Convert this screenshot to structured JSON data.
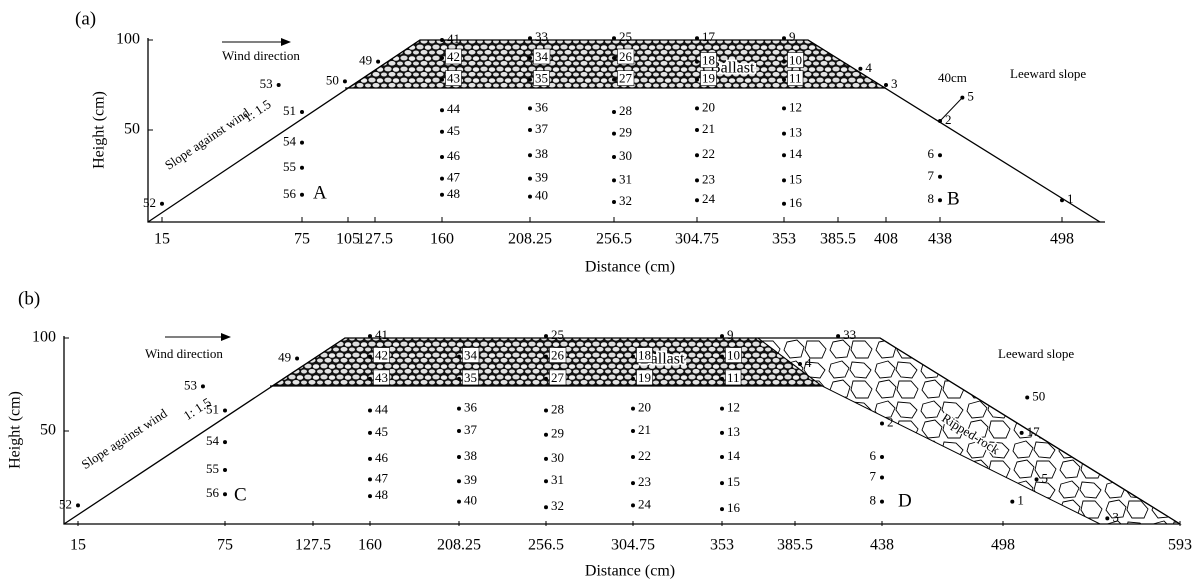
{
  "panels": [
    {
      "label": "(a)",
      "y_label": "Height (cm)",
      "x_label": "Distance (cm)",
      "x_ticks": [
        15,
        75,
        105,
        127.5,
        160,
        208.25,
        256.5,
        304.75,
        353,
        385.5,
        408,
        438,
        498
      ],
      "y_ticks": [
        50,
        100
      ],
      "annotations": {
        "wind": "Wind direction",
        "slope_against": "Slope against wind",
        "ratio": "1: 1.5",
        "leeward": "Leeward slope",
        "ballast": "Ballast",
        "width": "40cm",
        "zone_left": "A",
        "zone_right": "B"
      },
      "points": [
        {
          "label": "1",
          "x": 498,
          "y": 11
        },
        {
          "label": "2",
          "x": 438,
          "y": 55
        },
        {
          "label": "3",
          "x": 408,
          "y": 75
        },
        {
          "label": "4",
          "x": 396,
          "y": 84
        },
        {
          "label": "5",
          "x": 449,
          "y": 68
        },
        {
          "label": "6",
          "x": 438,
          "y": 36
        },
        {
          "label": "7",
          "x": 438,
          "y": 24
        },
        {
          "label": "8",
          "x": 438,
          "y": 11
        },
        {
          "label": "9",
          "x": 353,
          "y": 101
        },
        {
          "label": "10",
          "x": 353,
          "y": 88
        },
        {
          "label": "11",
          "x": 353,
          "y": 78
        },
        {
          "label": "12",
          "x": 353,
          "y": 62
        },
        {
          "label": "13",
          "x": 353,
          "y": 48
        },
        {
          "label": "14",
          "x": 353,
          "y": 36
        },
        {
          "label": "15",
          "x": 353,
          "y": 22
        },
        {
          "label": "16",
          "x": 353,
          "y": 9
        },
        {
          "label": "17",
          "x": 304.75,
          "y": 101
        },
        {
          "label": "18",
          "x": 304.75,
          "y": 88
        },
        {
          "label": "19",
          "x": 304.75,
          "y": 78
        },
        {
          "label": "20",
          "x": 304.75,
          "y": 62
        },
        {
          "label": "21",
          "x": 304.75,
          "y": 50
        },
        {
          "label": "22",
          "x": 304.75,
          "y": 36
        },
        {
          "label": "23",
          "x": 304.75,
          "y": 22
        },
        {
          "label": "24",
          "x": 304.75,
          "y": 11
        },
        {
          "label": "25",
          "x": 256.5,
          "y": 101
        },
        {
          "label": "26",
          "x": 256.5,
          "y": 90
        },
        {
          "label": "27",
          "x": 256.5,
          "y": 78
        },
        {
          "label": "28",
          "x": 256.5,
          "y": 60
        },
        {
          "label": "29",
          "x": 256.5,
          "y": 48
        },
        {
          "label": "30",
          "x": 256.5,
          "y": 35
        },
        {
          "label": "31",
          "x": 256.5,
          "y": 22
        },
        {
          "label": "32",
          "x": 256.5,
          "y": 10
        },
        {
          "label": "33",
          "x": 208.25,
          "y": 101
        },
        {
          "label": "34",
          "x": 208.25,
          "y": 90
        },
        {
          "label": "35",
          "x": 208.25,
          "y": 78
        },
        {
          "label": "36",
          "x": 208.25,
          "y": 62
        },
        {
          "label": "37",
          "x": 208.25,
          "y": 50
        },
        {
          "label": "38",
          "x": 208.25,
          "y": 36
        },
        {
          "label": "39",
          "x": 208.25,
          "y": 23
        },
        {
          "label": "40",
          "x": 208.25,
          "y": 13
        },
        {
          "label": "41",
          "x": 160,
          "y": 100
        },
        {
          "label": "42",
          "x": 160,
          "y": 90
        },
        {
          "label": "43",
          "x": 160,
          "y": 78
        },
        {
          "label": "44",
          "x": 160,
          "y": 61
        },
        {
          "label": "45",
          "x": 160,
          "y": 49
        },
        {
          "label": "46",
          "x": 160,
          "y": 35
        },
        {
          "label": "47",
          "x": 160,
          "y": 23
        },
        {
          "label": "48",
          "x": 160,
          "y": 14
        },
        {
          "label": "49",
          "x": 129,
          "y": 88
        },
        {
          "label": "50",
          "x": 103,
          "y": 77
        },
        {
          "label": "51",
          "x": 75,
          "y": 60
        },
        {
          "label": "52",
          "x": 15,
          "y": 9
        },
        {
          "label": "53",
          "x": 65,
          "y": 75
        },
        {
          "label": "54",
          "x": 75,
          "y": 43
        },
        {
          "label": "55",
          "x": 75,
          "y": 29
        },
        {
          "label": "56",
          "x": 75,
          "y": 14
        }
      ]
    },
    {
      "label": "(b)",
      "y_label": "Height (cm)",
      "x_label": "Distance (cm)",
      "x_ticks": [
        15,
        75,
        127.5,
        160,
        208.25,
        256.5,
        304.75,
        353,
        385.5,
        438,
        498,
        593
      ],
      "y_ticks": [
        50,
        100
      ],
      "annotations": {
        "wind": "Wind direction",
        "slope_against": "Slope against wind",
        "ratio": "1: 1.5",
        "leeward": "Leeward slope",
        "ballast": "Ballast",
        "ripped_rock": "Ripped-rock",
        "zone_left": "C",
        "zone_right": "D"
      },
      "points": [
        {
          "label": "1",
          "x": 503,
          "y": 12
        },
        {
          "label": "2",
          "x": 438,
          "y": 54
        },
        {
          "label": "3",
          "x": 554,
          "y": 3
        },
        {
          "label": "4",
          "x": 388.5,
          "y": 86
        },
        {
          "label": "5",
          "x": 516,
          "y": 24
        },
        {
          "label": "6",
          "x": 438,
          "y": 36
        },
        {
          "label": "7",
          "x": 438,
          "y": 25
        },
        {
          "label": "8",
          "x": 438,
          "y": 12
        },
        {
          "label": "9",
          "x": 353,
          "y": 101
        },
        {
          "label": "10",
          "x": 353,
          "y": 90
        },
        {
          "label": "11",
          "x": 353,
          "y": 78
        },
        {
          "label": "12",
          "x": 353,
          "y": 62
        },
        {
          "label": "13",
          "x": 353,
          "y": 49
        },
        {
          "label": "14",
          "x": 353,
          "y": 36
        },
        {
          "label": "15",
          "x": 353,
          "y": 22
        },
        {
          "label": "16",
          "x": 353,
          "y": 8
        },
        {
          "label": "17",
          "x": 508,
          "y": 49
        },
        {
          "label": "18",
          "x": 304.75,
          "y": 90
        },
        {
          "label": "19",
          "x": 304.75,
          "y": 78
        },
        {
          "label": "20",
          "x": 304.75,
          "y": 62
        },
        {
          "label": "21",
          "x": 304.75,
          "y": 50
        },
        {
          "label": "22",
          "x": 304.75,
          "y": 36
        },
        {
          "label": "23",
          "x": 304.75,
          "y": 22
        },
        {
          "label": "24",
          "x": 304.75,
          "y": 10
        },
        {
          "label": "25",
          "x": 256.5,
          "y": 101
        },
        {
          "label": "26",
          "x": 256.5,
          "y": 90
        },
        {
          "label": "27",
          "x": 256.5,
          "y": 78
        },
        {
          "label": "28",
          "x": 256.5,
          "y": 61
        },
        {
          "label": "29",
          "x": 256.5,
          "y": 48
        },
        {
          "label": "30",
          "x": 256.5,
          "y": 35
        },
        {
          "label": "31",
          "x": 256.5,
          "y": 23
        },
        {
          "label": "32",
          "x": 256.5,
          "y": 9
        },
        {
          "label": "33",
          "x": 411.5,
          "y": 101
        },
        {
          "label": "34",
          "x": 208.25,
          "y": 90
        },
        {
          "label": "35",
          "x": 208.25,
          "y": 78
        },
        {
          "label": "36",
          "x": 208.25,
          "y": 62
        },
        {
          "label": "37",
          "x": 208.25,
          "y": 50
        },
        {
          "label": "38",
          "x": 208.25,
          "y": 36
        },
        {
          "label": "39",
          "x": 208.25,
          "y": 23
        },
        {
          "label": "40",
          "x": 208.25,
          "y": 12
        },
        {
          "label": "41",
          "x": 160,
          "y": 101
        },
        {
          "label": "42",
          "x": 160,
          "y": 90
        },
        {
          "label": "43",
          "x": 160,
          "y": 78
        },
        {
          "label": "44",
          "x": 160,
          "y": 61
        },
        {
          "label": "45",
          "x": 160,
          "y": 49
        },
        {
          "label": "46",
          "x": 160,
          "y": 35
        },
        {
          "label": "47",
          "x": 160,
          "y": 24
        },
        {
          "label": "48",
          "x": 160,
          "y": 15
        },
        {
          "label": "49",
          "x": 118,
          "y": 89
        },
        {
          "label": "50",
          "x": 511,
          "y": 68
        },
        {
          "label": "51",
          "x": 75,
          "y": 61
        },
        {
          "label": "52",
          "x": 15,
          "y": 10
        },
        {
          "label": "53",
          "x": 66,
          "y": 74
        },
        {
          "label": "54",
          "x": 75,
          "y": 44
        },
        {
          "label": "55",
          "x": 75,
          "y": 29
        },
        {
          "label": "56",
          "x": 75,
          "y": 16
        }
      ]
    }
  ]
}
